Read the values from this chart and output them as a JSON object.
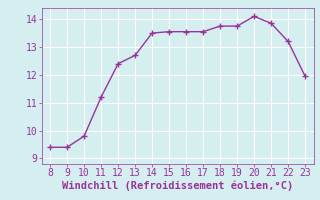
{
  "x": [
    8,
    9,
    10,
    11,
    12,
    13,
    14,
    15,
    16,
    17,
    18,
    19,
    20,
    21,
    22,
    23
  ],
  "y": [
    9.4,
    9.4,
    9.8,
    11.2,
    12.4,
    12.7,
    13.5,
    13.55,
    13.55,
    13.55,
    13.75,
    13.75,
    14.1,
    13.85,
    13.2,
    11.95
  ],
  "line_color": "#993399",
  "marker": "+",
  "marker_size": 4,
  "background_color": "#d5eef0",
  "grid_color": "#ffffff",
  "xlabel": "Windchill (Refroidissement éolien,°C)",
  "xlabel_color": "#993399",
  "tick_color": "#993399",
  "xlim": [
    7.5,
    23.5
  ],
  "ylim": [
    8.8,
    14.4
  ],
  "yticks": [
    9,
    10,
    11,
    12,
    13,
    14
  ],
  "xticks": [
    8,
    9,
    10,
    11,
    12,
    13,
    14,
    15,
    16,
    17,
    18,
    19,
    20,
    21,
    22,
    23
  ],
  "axis_fontsize": 7,
  "xlabel_fontsize": 7.5,
  "linewidth": 1.0,
  "markeredgewidth": 1.0
}
